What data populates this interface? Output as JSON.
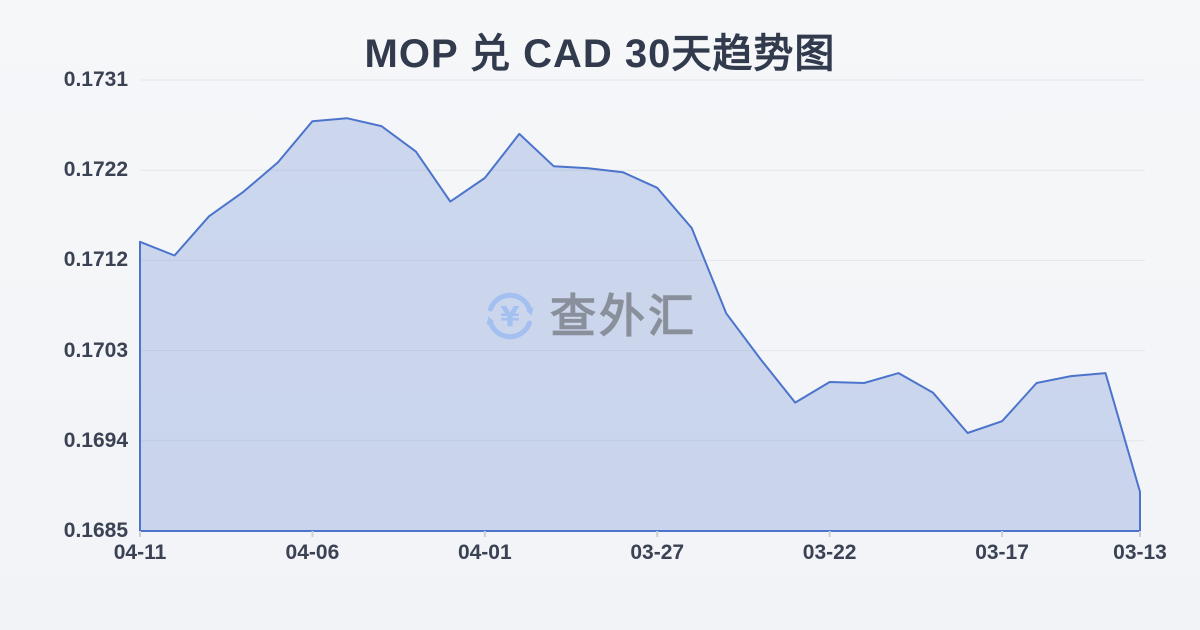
{
  "title": "MOP 兑 CAD 30天趋势图",
  "watermark": {
    "text": "查外汇",
    "symbol": "¥"
  },
  "colors": {
    "background": "#f4f6f8",
    "line": "#4c74cc",
    "fill": "rgba(77,116,204,0.24)",
    "grid": "#e2e5ea",
    "tick": "#ccd0d6",
    "title_text": "#323b4d",
    "axis_text": "#3a4254",
    "watermark_text": "#8a909b",
    "watermark_icon": "#a3c0f1"
  },
  "y_axis": {
    "labels": [
      "0.1731",
      "0.1722",
      "0.1712",
      "0.1703",
      "0.1694",
      "0.1685"
    ]
  },
  "x_axis": {
    "labels": [
      "04-11",
      "04-06",
      "04-01",
      "03-27",
      "03-22",
      "03-17",
      "03-13"
    ]
  },
  "chart_data": {
    "type": "area",
    "title": "MOP 兑 CAD 30天趋势图",
    "x": [
      "04-11",
      "04-10",
      "04-09",
      "04-08",
      "04-07",
      "04-06",
      "04-05",
      "04-04",
      "04-03",
      "04-02",
      "04-01",
      "03-31",
      "03-30",
      "03-29",
      "03-28",
      "03-27",
      "03-26",
      "03-25",
      "03-24",
      "03-23",
      "03-22",
      "03-21",
      "03-20",
      "03-19",
      "03-18",
      "03-17",
      "03-16",
      "03-15",
      "03-14",
      "03-13"
    ],
    "values": [
      0.17145,
      0.17131,
      0.17171,
      0.17196,
      0.17226,
      0.17268,
      0.17271,
      0.17263,
      0.17237,
      0.17186,
      0.1721,
      0.17255,
      0.17222,
      0.1722,
      0.17216,
      0.172,
      0.17159,
      0.17072,
      0.17025,
      0.16981,
      0.17002,
      0.17001,
      0.17011,
      0.16991,
      0.1695,
      0.16962,
      0.17001,
      0.17008,
      0.17011,
      0.1689
    ],
    "x_tick_labels": [
      "04-11",
      "04-06",
      "04-01",
      "03-27",
      "03-22",
      "03-17",
      "03-13"
    ],
    "x_tick_indices": [
      0,
      5,
      10,
      15,
      20,
      25,
      29
    ],
    "y_tick_labels": [
      "0.1731",
      "0.1722",
      "0.1712",
      "0.1703",
      "0.1694",
      "0.1685"
    ],
    "ylim": [
      0.1685,
      0.1731
    ],
    "x_order": "reverse-chronological",
    "grid": true,
    "legend": false
  }
}
